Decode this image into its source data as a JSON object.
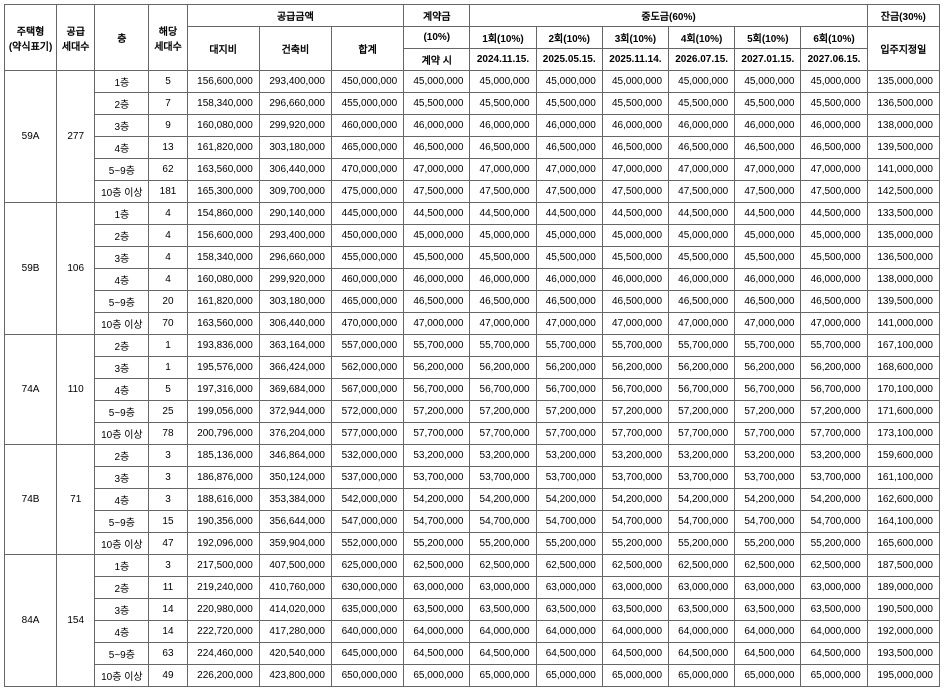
{
  "headers": {
    "type": "주택형\n(약식표기)",
    "supply": "공급\n세대수",
    "floor": "층",
    "units": "해당\n세대수",
    "supplyAmount": "공급금액",
    "landCost": "대지비",
    "buildCost": "건축비",
    "total": "합계",
    "contract": "계약금",
    "contractPct": "(10%)",
    "contractTime": "계약 시",
    "interim": "중도금(60%)",
    "int1": "1회(10%)",
    "int2": "2회(10%)",
    "int3": "3회(10%)",
    "int4": "4회(10%)",
    "int5": "5회(10%)",
    "int6": "6회(10%)",
    "date1": "2024.11.15.",
    "date2": "2025.05.15.",
    "date3": "2025.11.14.",
    "date4": "2026.07.15.",
    "date5": "2027.01.15.",
    "date6": "2027.06.15.",
    "balance": "잔금(30%)",
    "moveIn": "입주지정일"
  },
  "groups": [
    {
      "type": "59A",
      "supply": "277",
      "rows": [
        {
          "floor": "1층",
          "units": "5",
          "land": "156,600,000",
          "build": "293,400,000",
          "total": "450,000,000",
          "contract": "45,000,000",
          "i": "45,000,000",
          "bal": "135,000,000"
        },
        {
          "floor": "2층",
          "units": "7",
          "land": "158,340,000",
          "build": "296,660,000",
          "total": "455,000,000",
          "contract": "45,500,000",
          "i": "45,500,000",
          "bal": "136,500,000"
        },
        {
          "floor": "3층",
          "units": "9",
          "land": "160,080,000",
          "build": "299,920,000",
          "total": "460,000,000",
          "contract": "46,000,000",
          "i": "46,000,000",
          "bal": "138,000,000"
        },
        {
          "floor": "4층",
          "units": "13",
          "land": "161,820,000",
          "build": "303,180,000",
          "total": "465,000,000",
          "contract": "46,500,000",
          "i": "46,500,000",
          "bal": "139,500,000"
        },
        {
          "floor": "5~9층",
          "units": "62",
          "land": "163,560,000",
          "build": "306,440,000",
          "total": "470,000,000",
          "contract": "47,000,000",
          "i": "47,000,000",
          "bal": "141,000,000"
        },
        {
          "floor": "10층 이상",
          "units": "181",
          "land": "165,300,000",
          "build": "309,700,000",
          "total": "475,000,000",
          "contract": "47,500,000",
          "i": "47,500,000",
          "bal": "142,500,000"
        }
      ]
    },
    {
      "type": "59B",
      "supply": "106",
      "rows": [
        {
          "floor": "1층",
          "units": "4",
          "land": "154,860,000",
          "build": "290,140,000",
          "total": "445,000,000",
          "contract": "44,500,000",
          "i": "44,500,000",
          "bal": "133,500,000"
        },
        {
          "floor": "2층",
          "units": "4",
          "land": "156,600,000",
          "build": "293,400,000",
          "total": "450,000,000",
          "contract": "45,000,000",
          "i": "45,000,000",
          "bal": "135,000,000"
        },
        {
          "floor": "3층",
          "units": "4",
          "land": "158,340,000",
          "build": "296,660,000",
          "total": "455,000,000",
          "contract": "45,500,000",
          "i": "45,500,000",
          "bal": "136,500,000"
        },
        {
          "floor": "4층",
          "units": "4",
          "land": "160,080,000",
          "build": "299,920,000",
          "total": "460,000,000",
          "contract": "46,000,000",
          "i": "46,000,000",
          "bal": "138,000,000"
        },
        {
          "floor": "5~9층",
          "units": "20",
          "land": "161,820,000",
          "build": "303,180,000",
          "total": "465,000,000",
          "contract": "46,500,000",
          "i": "46,500,000",
          "bal": "139,500,000"
        },
        {
          "floor": "10층 이상",
          "units": "70",
          "land": "163,560,000",
          "build": "306,440,000",
          "total": "470,000,000",
          "contract": "47,000,000",
          "i": "47,000,000",
          "bal": "141,000,000"
        }
      ]
    },
    {
      "type": "74A",
      "supply": "110",
      "rows": [
        {
          "floor": "2층",
          "units": "1",
          "land": "193,836,000",
          "build": "363,164,000",
          "total": "557,000,000",
          "contract": "55,700,000",
          "i": "55,700,000",
          "bal": "167,100,000"
        },
        {
          "floor": "3층",
          "units": "1",
          "land": "195,576,000",
          "build": "366,424,000",
          "total": "562,000,000",
          "contract": "56,200,000",
          "i": "56,200,000",
          "bal": "168,600,000"
        },
        {
          "floor": "4층",
          "units": "5",
          "land": "197,316,000",
          "build": "369,684,000",
          "total": "567,000,000",
          "contract": "56,700,000",
          "i": "56,700,000",
          "bal": "170,100,000"
        },
        {
          "floor": "5~9층",
          "units": "25",
          "land": "199,056,000",
          "build": "372,944,000",
          "total": "572,000,000",
          "contract": "57,200,000",
          "i": "57,200,000",
          "bal": "171,600,000"
        },
        {
          "floor": "10층 이상",
          "units": "78",
          "land": "200,796,000",
          "build": "376,204,000",
          "total": "577,000,000",
          "contract": "57,700,000",
          "i": "57,700,000",
          "bal": "173,100,000"
        }
      ]
    },
    {
      "type": "74B",
      "supply": "71",
      "rows": [
        {
          "floor": "2층",
          "units": "3",
          "land": "185,136,000",
          "build": "346,864,000",
          "total": "532,000,000",
          "contract": "53,200,000",
          "i": "53,200,000",
          "bal": "159,600,000"
        },
        {
          "floor": "3층",
          "units": "3",
          "land": "186,876,000",
          "build": "350,124,000",
          "total": "537,000,000",
          "contract": "53,700,000",
          "i": "53,700,000",
          "bal": "161,100,000"
        },
        {
          "floor": "4층",
          "units": "3",
          "land": "188,616,000",
          "build": "353,384,000",
          "total": "542,000,000",
          "contract": "54,200,000",
          "i": "54,200,000",
          "bal": "162,600,000"
        },
        {
          "floor": "5~9층",
          "units": "15",
          "land": "190,356,000",
          "build": "356,644,000",
          "total": "547,000,000",
          "contract": "54,700,000",
          "i": "54,700,000",
          "bal": "164,100,000"
        },
        {
          "floor": "10층 이상",
          "units": "47",
          "land": "192,096,000",
          "build": "359,904,000",
          "total": "552,000,000",
          "contract": "55,200,000",
          "i": "55,200,000",
          "bal": "165,600,000"
        }
      ]
    },
    {
      "type": "84A",
      "supply": "154",
      "rows": [
        {
          "floor": "1층",
          "units": "3",
          "land": "217,500,000",
          "build": "407,500,000",
          "total": "625,000,000",
          "contract": "62,500,000",
          "i": "62,500,000",
          "bal": "187,500,000"
        },
        {
          "floor": "2층",
          "units": "11",
          "land": "219,240,000",
          "build": "410,760,000",
          "total": "630,000,000",
          "contract": "63,000,000",
          "i": "63,000,000",
          "bal": "189,000,000"
        },
        {
          "floor": "3층",
          "units": "14",
          "land": "220,980,000",
          "build": "414,020,000",
          "total": "635,000,000",
          "contract": "63,500,000",
          "i": "63,500,000",
          "bal": "190,500,000"
        },
        {
          "floor": "4층",
          "units": "14",
          "land": "222,720,000",
          "build": "417,280,000",
          "total": "640,000,000",
          "contract": "64,000,000",
          "i": "64,000,000",
          "bal": "192,000,000"
        },
        {
          "floor": "5~9층",
          "units": "63",
          "land": "224,460,000",
          "build": "420,540,000",
          "total": "645,000,000",
          "contract": "64,500,000",
          "i": "64,500,000",
          "bal": "193,500,000"
        },
        {
          "floor": "10층 이상",
          "units": "49",
          "land": "226,200,000",
          "build": "423,800,000",
          "total": "650,000,000",
          "contract": "65,000,000",
          "i": "65,000,000",
          "bal": "195,000,000"
        }
      ]
    }
  ]
}
